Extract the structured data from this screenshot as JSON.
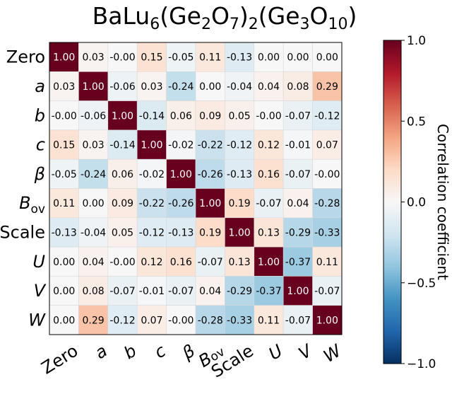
{
  "chart_data": {
    "type": "heatmap",
    "title": {
      "base": "BaLu",
      "parts": [
        {
          "t": "BaLu",
          "sub": false
        },
        {
          "t": "6",
          "sub": true
        },
        {
          "t": "(Ge",
          "sub": false
        },
        {
          "t": "2",
          "sub": true
        },
        {
          "t": "O",
          "sub": false
        },
        {
          "t": "7",
          "sub": true
        },
        {
          "t": ")",
          "sub": false
        },
        {
          "t": "2",
          "sub": true
        },
        {
          "t": "(Ge",
          "sub": false
        },
        {
          "t": "3",
          "sub": true
        },
        {
          "t": "O",
          "sub": false
        },
        {
          "t": "10",
          "sub": true
        },
        {
          "t": ")",
          "sub": false
        }
      ]
    },
    "labels": [
      {
        "main": "Zero",
        "sub": "",
        "italic": false
      },
      {
        "main": "a",
        "sub": "",
        "italic": true
      },
      {
        "main": "b",
        "sub": "",
        "italic": true
      },
      {
        "main": "c",
        "sub": "",
        "italic": true
      },
      {
        "main": "β",
        "sub": "",
        "italic": true
      },
      {
        "main": "B",
        "sub": "ov",
        "italic": true
      },
      {
        "main": "Scale",
        "sub": "",
        "italic": false
      },
      {
        "main": "U",
        "sub": "",
        "italic": true
      },
      {
        "main": "V",
        "sub": "",
        "italic": true
      },
      {
        "main": "W",
        "sub": "",
        "italic": true
      }
    ],
    "matrix": [
      [
        1.0,
        0.03,
        -0.0,
        0.15,
        -0.05,
        0.11,
        -0.13,
        0.0,
        0.0,
        0.0
      ],
      [
        0.03,
        1.0,
        -0.06,
        0.03,
        -0.24,
        0.0,
        -0.04,
        0.04,
        0.08,
        0.29
      ],
      [
        -0.0,
        -0.06,
        1.0,
        -0.14,
        0.06,
        0.09,
        0.05,
        -0.0,
        -0.07,
        -0.12
      ],
      [
        0.15,
        0.03,
        -0.14,
        1.0,
        -0.02,
        -0.22,
        -0.12,
        0.12,
        -0.01,
        0.07
      ],
      [
        -0.05,
        -0.24,
        0.06,
        -0.02,
        1.0,
        -0.26,
        -0.13,
        0.16,
        -0.07,
        -0.0
      ],
      [
        0.11,
        0.0,
        0.09,
        -0.22,
        -0.26,
        1.0,
        0.19,
        -0.07,
        0.04,
        -0.28
      ],
      [
        -0.13,
        -0.04,
        0.05,
        -0.12,
        -0.13,
        0.19,
        1.0,
        0.13,
        -0.29,
        -0.33
      ],
      [
        0.0,
        0.04,
        -0.0,
        0.12,
        0.16,
        -0.07,
        0.13,
        1.0,
        -0.37,
        0.11
      ],
      [
        0.0,
        0.08,
        -0.07,
        -0.01,
        -0.07,
        0.04,
        -0.29,
        -0.37,
        1.0,
        -0.07
      ],
      [
        0.0,
        0.29,
        -0.12,
        0.07,
        -0.0,
        -0.28,
        -0.33,
        0.11,
        -0.07,
        1.0
      ]
    ],
    "cell_labels": [
      [
        "1.00",
        "0.03",
        "-0.00",
        "0.15",
        "-0.05",
        "0.11",
        "-0.13",
        "0.00",
        "0.00",
        "0.00"
      ],
      [
        "0.03",
        "1.00",
        "-0.06",
        "0.03",
        "-0.24",
        "0.00",
        "-0.04",
        "0.04",
        "0.08",
        "0.29"
      ],
      [
        "-0.00",
        "-0.06",
        "1.00",
        "-0.14",
        "0.06",
        "0.09",
        "0.05",
        "-0.00",
        "-0.07",
        "-0.12"
      ],
      [
        "0.15",
        "0.03",
        "-0.14",
        "1.00",
        "-0.02",
        "-0.22",
        "-0.12",
        "0.12",
        "-0.01",
        "0.07"
      ],
      [
        "-0.05",
        "-0.24",
        "0.06",
        "-0.02",
        "1.00",
        "-0.26",
        "-0.13",
        "0.16",
        "-0.07",
        "-0.00"
      ],
      [
        "0.11",
        "0.00",
        "0.09",
        "-0.22",
        "-0.26",
        "1.00",
        "0.19",
        "-0.07",
        "0.04",
        "-0.28"
      ],
      [
        "-0.13",
        "-0.04",
        "0.05",
        "-0.12",
        "-0.13",
        "0.19",
        "1.00",
        "0.13",
        "-0.29",
        "-0.33"
      ],
      [
        "0.00",
        "0.04",
        "-0.00",
        "0.12",
        "0.16",
        "-0.07",
        "0.13",
        "1.00",
        "-0.37",
        "0.11"
      ],
      [
        "0.00",
        "0.08",
        "-0.07",
        "-0.01",
        "-0.07",
        "0.04",
        "-0.29",
        "-0.37",
        "1.00",
        "-0.07"
      ],
      [
        "0.00",
        "0.29",
        "-0.12",
        "0.07",
        "-0.00",
        "-0.28",
        "-0.33",
        "0.11",
        "-0.07",
        "1.00"
      ]
    ],
    "colorbar": {
      "label": "Correlation coefficient",
      "range": [
        -1.0,
        1.0
      ],
      "ticks": [
        1.0,
        0.5,
        0.0,
        -0.5,
        -1.0
      ],
      "tick_labels": [
        "1.0",
        "0.5",
        "0.0",
        "−0.5",
        "−1.0"
      ],
      "colormap": "RdBu_r",
      "colors": [
        "#053061",
        "#2166ac",
        "#4393c3",
        "#92c5de",
        "#d1e5f0",
        "#f7f7f7",
        "#fddbc7",
        "#f4a582",
        "#d6604d",
        "#b2182b",
        "#67001f"
      ]
    }
  }
}
